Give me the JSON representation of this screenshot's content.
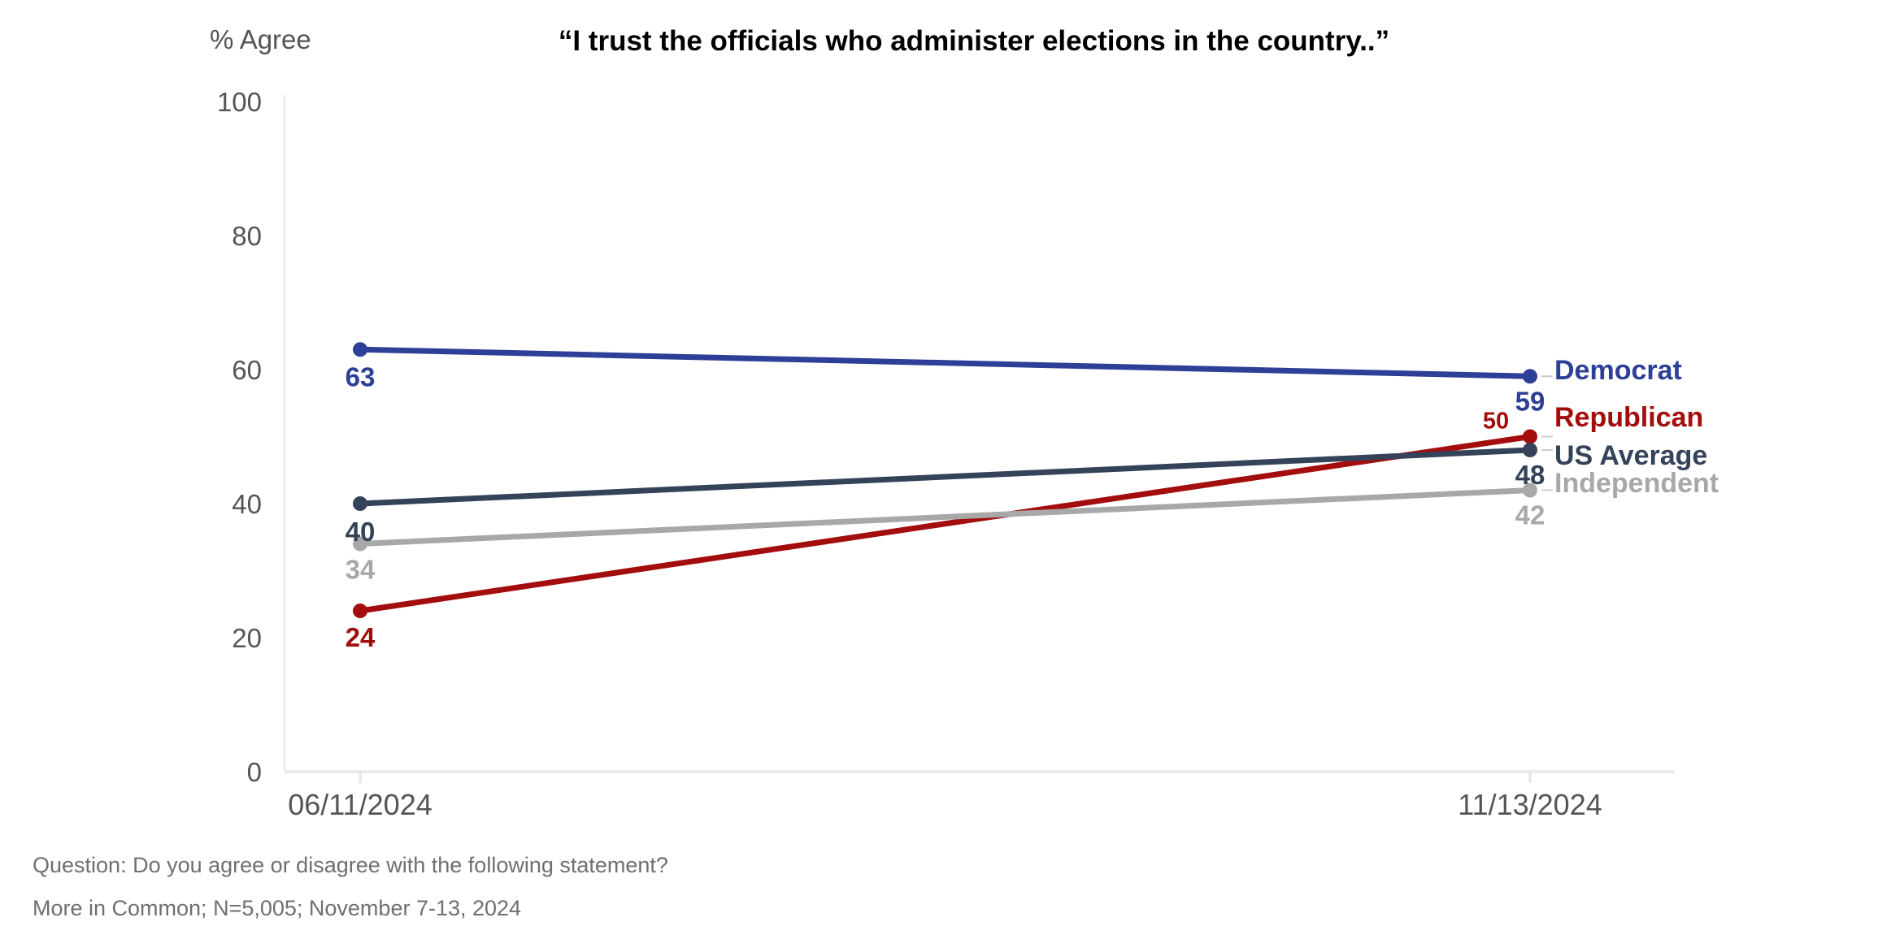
{
  "chart_data": {
    "type": "line",
    "title": "“I trust the officials who administer elections in the country..”",
    "ylabel": "% Agree",
    "xlabel": "",
    "ylim": [
      0,
      100
    ],
    "yticks": [
      0,
      20,
      40,
      60,
      80,
      100
    ],
    "x": [
      "06/11/2024",
      "11/13/2024"
    ],
    "grid": false,
    "legend": "direct labels at right end of lines",
    "series": [
      {
        "name": "Democrat",
        "color": "#2e3f97",
        "values": [
          63,
          59
        ]
      },
      {
        "name": "Republican",
        "color": "#a30d0d",
        "values": [
          24,
          50
        ]
      },
      {
        "name": "US Average",
        "color": "#35435a",
        "values": [
          40,
          48
        ]
      },
      {
        "name": "Independent",
        "color": "#a8a8a8",
        "values": [
          34,
          42
        ]
      }
    ]
  },
  "footnotes": {
    "question": "Question: Do you agree or disagree with the following statement?",
    "source": "More in Common; N=5,005; November 7-13, 2024"
  }
}
